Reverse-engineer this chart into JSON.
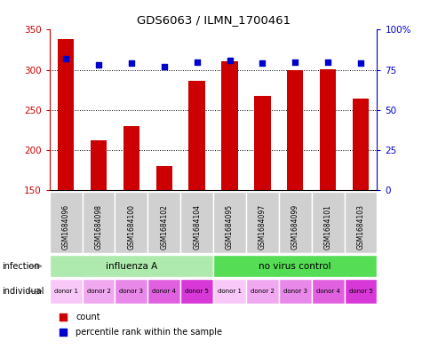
{
  "title": "GDS6063 / ILMN_1700461",
  "samples": [
    "GSM1684096",
    "GSM1684098",
    "GSM1684100",
    "GSM1684102",
    "GSM1684104",
    "GSM1684095",
    "GSM1684097",
    "GSM1684099",
    "GSM1684101",
    "GSM1684103"
  ],
  "counts": [
    338,
    212,
    230,
    180,
    286,
    311,
    268,
    300,
    301,
    264
  ],
  "percentiles": [
    82,
    78,
    79,
    77,
    80,
    81,
    79,
    80,
    80,
    79
  ],
  "ylim_left": [
    150,
    350
  ],
  "ylim_right": [
    0,
    100
  ],
  "yticks_left": [
    150,
    200,
    250,
    300,
    350
  ],
  "yticks_right": [
    0,
    25,
    50,
    75,
    100
  ],
  "yticklabels_right": [
    "0",
    "25",
    "50",
    "75",
    "100%"
  ],
  "infection_groups": [
    {
      "label": "influenza A",
      "start": 0,
      "end": 5,
      "color": "#aeeaae"
    },
    {
      "label": "no virus control",
      "start": 5,
      "end": 10,
      "color": "#55dd55"
    }
  ],
  "individual_labels": [
    "donor 1",
    "donor 2",
    "donor 3",
    "donor 4",
    "donor 5",
    "donor 1",
    "donor 2",
    "donor 3",
    "donor 4",
    "donor 5"
  ],
  "individual_colors": [
    "#f8c8f8",
    "#f0a8f0",
    "#e888e8",
    "#e060e0",
    "#d838d8",
    "#f8c8f8",
    "#f0a8f0",
    "#e888e8",
    "#e060e0",
    "#d838d8"
  ],
  "bar_color": "#cc0000",
  "percentile_color": "#0000cc",
  "sample_bg_color": "#d0d0d0",
  "left_axis_color": "#cc0000",
  "right_axis_color": "#0000cc"
}
